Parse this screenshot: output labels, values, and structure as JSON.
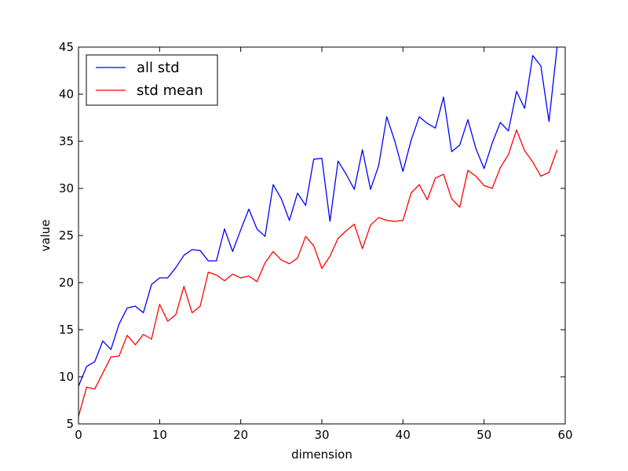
{
  "chart_data": {
    "type": "line",
    "title": "",
    "xlabel": "dimension",
    "ylabel": "value",
    "xlim": [
      0,
      60
    ],
    "ylim": [
      5,
      45
    ],
    "xticks": [
      "0",
      "10",
      "20",
      "30",
      "40",
      "50",
      "60"
    ],
    "yticks": [
      "5",
      "10",
      "15",
      "20",
      "25",
      "30",
      "35",
      "40",
      "45"
    ],
    "grid": false,
    "legend": {
      "position": "top-left"
    },
    "series": [
      {
        "name": "all std",
        "color": "#0000ff",
        "x": [
          0,
          1,
          2,
          3,
          4,
          5,
          6,
          7,
          8,
          9,
          10,
          11,
          12,
          13,
          14,
          15,
          16,
          17,
          18,
          19,
          20,
          21,
          22,
          23,
          24,
          25,
          26,
          27,
          28,
          29,
          30,
          31,
          32,
          33,
          34,
          35,
          36,
          37,
          38,
          39,
          40,
          41,
          42,
          43,
          44,
          45,
          46,
          47,
          48,
          49,
          50,
          51,
          52,
          53,
          54,
          55,
          56,
          57,
          58,
          59
        ],
        "values": [
          9.0,
          11.1,
          11.6,
          13.8,
          12.9,
          15.6,
          17.3,
          17.5,
          16.8,
          19.8,
          20.5,
          20.5,
          21.6,
          22.9,
          23.5,
          23.4,
          22.3,
          22.3,
          25.7,
          23.3,
          25.6,
          27.8,
          25.7,
          24.9,
          30.4,
          28.9,
          26.6,
          29.5,
          28.2,
          33.1,
          33.2,
          26.5,
          32.9,
          31.5,
          29.9,
          34.1,
          29.9,
          32.4,
          37.6,
          35.0,
          31.8,
          35.1,
          37.6,
          36.9,
          36.4,
          39.7,
          33.9,
          34.6,
          37.3,
          34.2,
          32.1,
          34.8,
          37.0,
          36.1,
          40.3,
          38.5,
          44.1,
          43.0,
          37.1,
          45.0
        ]
      },
      {
        "name": "std mean",
        "color": "#ff0000",
        "x": [
          0,
          1,
          2,
          3,
          4,
          5,
          6,
          7,
          8,
          9,
          10,
          11,
          12,
          13,
          14,
          15,
          16,
          17,
          18,
          19,
          20,
          21,
          22,
          23,
          24,
          25,
          26,
          27,
          28,
          29,
          30,
          31,
          32,
          33,
          34,
          35,
          36,
          37,
          38,
          39,
          40,
          41,
          42,
          43,
          44,
          45,
          46,
          47,
          48,
          49,
          50,
          51,
          52,
          53,
          54,
          55,
          56,
          57,
          58,
          59
        ],
        "values": [
          5.8,
          8.9,
          8.7,
          10.4,
          12.1,
          12.2,
          14.4,
          13.4,
          14.5,
          14.0,
          17.7,
          15.9,
          16.6,
          19.6,
          16.8,
          17.5,
          21.1,
          20.8,
          20.2,
          20.9,
          20.5,
          20.7,
          20.1,
          22.1,
          23.3,
          22.4,
          22.0,
          22.6,
          24.9,
          23.9,
          21.5,
          22.8,
          24.7,
          25.5,
          26.2,
          23.6,
          26.1,
          26.9,
          26.6,
          26.5,
          26.6,
          29.5,
          30.4,
          28.8,
          31.1,
          31.5,
          28.9,
          28.0,
          31.9,
          31.3,
          30.3,
          30.0,
          32.2,
          33.6,
          36.2,
          34.0,
          32.8,
          31.3,
          31.7,
          34.1
        ]
      }
    ]
  }
}
